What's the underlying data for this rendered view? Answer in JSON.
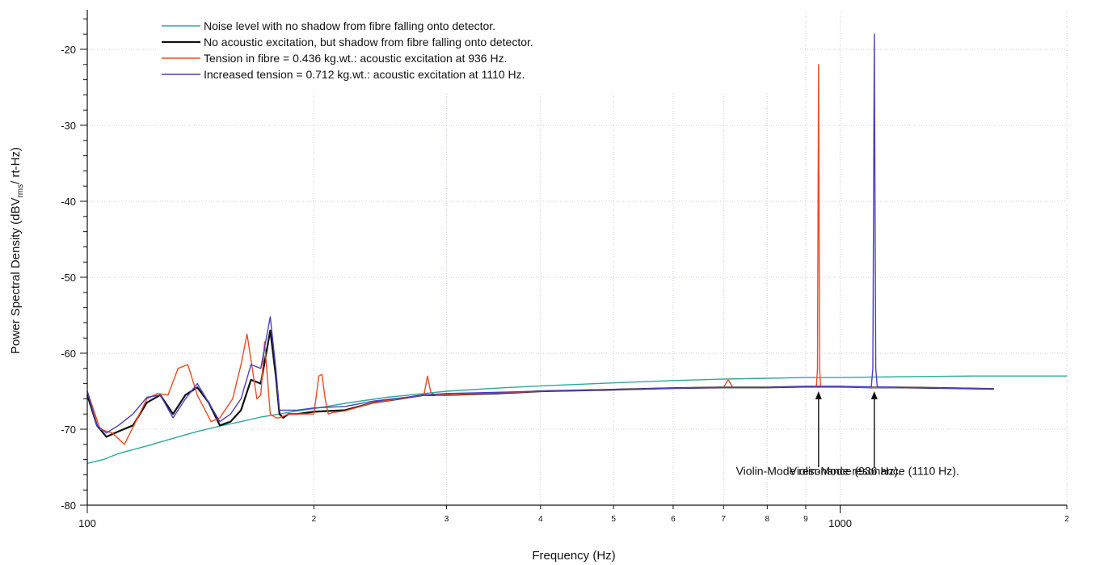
{
  "chart_data": {
    "type": "line",
    "x_scale": "log",
    "xlabel": "Frequency (Hz)",
    "ylabel_main": "Power Spectral Density (dBV",
    "ylabel_sub": "rms",
    "ylabel_end": "/ rt-Hz)",
    "xlim": [
      100,
      2000
    ],
    "ylim": [
      -80,
      -15
    ],
    "grid": true,
    "legend_position": "top-left",
    "x_major_ticks": [
      {
        "value": 100,
        "label": "100"
      },
      {
        "value": 1000,
        "label": "1000"
      }
    ],
    "x_minor_ticks": [
      {
        "value": 200,
        "label": "2"
      },
      {
        "value": 300,
        "label": "3"
      },
      {
        "value": 400,
        "label": "4"
      },
      {
        "value": 500,
        "label": "5"
      },
      {
        "value": 600,
        "label": "6"
      },
      {
        "value": 700,
        "label": "7"
      },
      {
        "value": 800,
        "label": "8"
      },
      {
        "value": 900,
        "label": "9"
      },
      {
        "value": 2000,
        "label": "2"
      }
    ],
    "y_ticks": [
      {
        "value": -80,
        "label": "-80"
      },
      {
        "value": -70,
        "label": "-70"
      },
      {
        "value": -60,
        "label": "-60"
      },
      {
        "value": -50,
        "label": "-50"
      },
      {
        "value": -40,
        "label": "-40"
      },
      {
        "value": -30,
        "label": "-30"
      },
      {
        "value": -20,
        "label": "-20"
      }
    ],
    "series": [
      {
        "name": "Noise level with no shadow from fibre falling onto detector.",
        "color": "#2ea89c",
        "width": 1.4,
        "x": [
          100,
          105,
          110,
          120,
          130,
          140,
          150,
          160,
          170,
          180,
          190,
          200,
          220,
          250,
          280,
          300,
          350,
          400,
          500,
          600,
          700,
          800,
          900,
          1000,
          1200,
          1500,
          1800,
          2000
        ],
        "y": [
          -74.5,
          -74,
          -73.2,
          -72.2,
          -71.2,
          -70.3,
          -69.6,
          -69,
          -68.4,
          -68,
          -67.6,
          -67.3,
          -66.6,
          -65.8,
          -65.3,
          -65,
          -64.6,
          -64.3,
          -63.9,
          -63.6,
          -63.4,
          -63.3,
          -63.2,
          -63.2,
          -63.1,
          -63,
          -63,
          -63
        ]
      },
      {
        "name": "No acoustic excitation, but  shadow from fibre falling onto detector.",
        "color": "#111111",
        "width": 2.2,
        "x": [
          100,
          103,
          106,
          110,
          115,
          120,
          125,
          130,
          135,
          140,
          145,
          150,
          155,
          160,
          165,
          170,
          175,
          178,
          180,
          182,
          185,
          190,
          200,
          210,
          220,
          240,
          260,
          280,
          300,
          350,
          400,
          500,
          600,
          700,
          800,
          900,
          1000,
          1100,
          1200,
          1400,
          1600
        ],
        "y": [
          -65.5,
          -69.5,
          -71,
          -70.3,
          -69.5,
          -66.5,
          -65.5,
          -68,
          -65.5,
          -64.5,
          -66.5,
          -69.5,
          -69,
          -67.5,
          -63.5,
          -64,
          -57,
          -63,
          -68,
          -68.5,
          -68,
          -68,
          -67.7,
          -67.6,
          -67.5,
          -66.5,
          -66,
          -65.5,
          -65.5,
          -65.3,
          -65,
          -64.8,
          -64.6,
          -64.5,
          -64.5,
          -64.4,
          -64.4,
          -64.5,
          -64.5,
          -64.6,
          -64.7
        ]
      },
      {
        "name": "Tension in fibre = 0.436 kg.wt.:      acoustic excitation at   936 Hz.",
        "color": "#f04a22",
        "width": 1.4,
        "x": [
          100,
          104,
          108,
          112,
          116,
          120,
          124,
          128,
          132,
          136,
          140,
          146,
          150,
          156,
          160,
          163,
          168,
          170,
          172,
          175,
          178,
          180,
          185,
          190,
          200,
          203,
          205,
          207,
          209,
          212,
          220,
          240,
          260,
          280,
          283,
          286,
          290,
          300,
          400,
          500,
          600,
          700,
          710,
          720,
          800,
          900,
          930,
          933,
          936,
          939,
          942,
          950,
          1000,
          1100,
          1200,
          1400,
          1600
        ],
        "y": [
          -65,
          -70,
          -70.5,
          -72,
          -69,
          -66,
          -65.3,
          -65.5,
          -62,
          -61.5,
          -65.5,
          -69,
          -68.5,
          -66,
          -61.5,
          -57.5,
          -66,
          -65.5,
          -58.5,
          -68,
          -68.5,
          -68.5,
          -68,
          -68,
          -68,
          -63,
          -62.8,
          -66,
          -68,
          -67.8,
          -67.6,
          -66.5,
          -66,
          -65.5,
          -63,
          -65.2,
          -65.5,
          -65.5,
          -65,
          -64.8,
          -64.6,
          -64.5,
          -63.5,
          -64.5,
          -64.5,
          -64.4,
          -64.4,
          -62,
          -22,
          -62,
          -64.4,
          -64.4,
          -64.4,
          -64.5,
          -64.5,
          -64.6,
          -64.7
        ]
      },
      {
        "name": "Increased tension  =  0.712 kg.wt.: acoustic excitation at 1110 Hz.",
        "color": "#4a3ec4",
        "width": 1.4,
        "x": [
          100,
          103,
          106,
          110,
          115,
          120,
          125,
          130,
          135,
          140,
          145,
          150,
          155,
          160,
          165,
          170,
          175,
          178,
          180,
          185,
          190,
          200,
          220,
          240,
          260,
          280,
          300,
          400,
          500,
          600,
          700,
          800,
          900,
          1000,
          1100,
          1105,
          1110,
          1115,
          1120,
          1200,
          1400,
          1600
        ],
        "y": [
          -65,
          -69.5,
          -70.5,
          -69.5,
          -68,
          -65.8,
          -65.5,
          -68.5,
          -66,
          -64,
          -66.5,
          -69,
          -68,
          -66,
          -61.5,
          -62,
          -55.2,
          -62,
          -67.5,
          -67.5,
          -67.5,
          -67.2,
          -67,
          -66.3,
          -65.9,
          -65.5,
          -65.3,
          -65,
          -64.8,
          -64.6,
          -64.5,
          -64.5,
          -64.4,
          -64.4,
          -64.4,
          -62,
          -18,
          -62,
          -64.4,
          -64.5,
          -64.6,
          -64.7
        ]
      }
    ],
    "annotations": [
      {
        "text": "Violin-Mode resonance (936 Hz).",
        "x": 936,
        "y_text": -76,
        "arrow_from": -75,
        "arrow_to": -65
      },
      {
        "text": "Violin-Mode resonance (1110 Hz).",
        "x": 1110,
        "y_text": -76,
        "arrow_from": -75,
        "arrow_to": -65
      }
    ]
  }
}
